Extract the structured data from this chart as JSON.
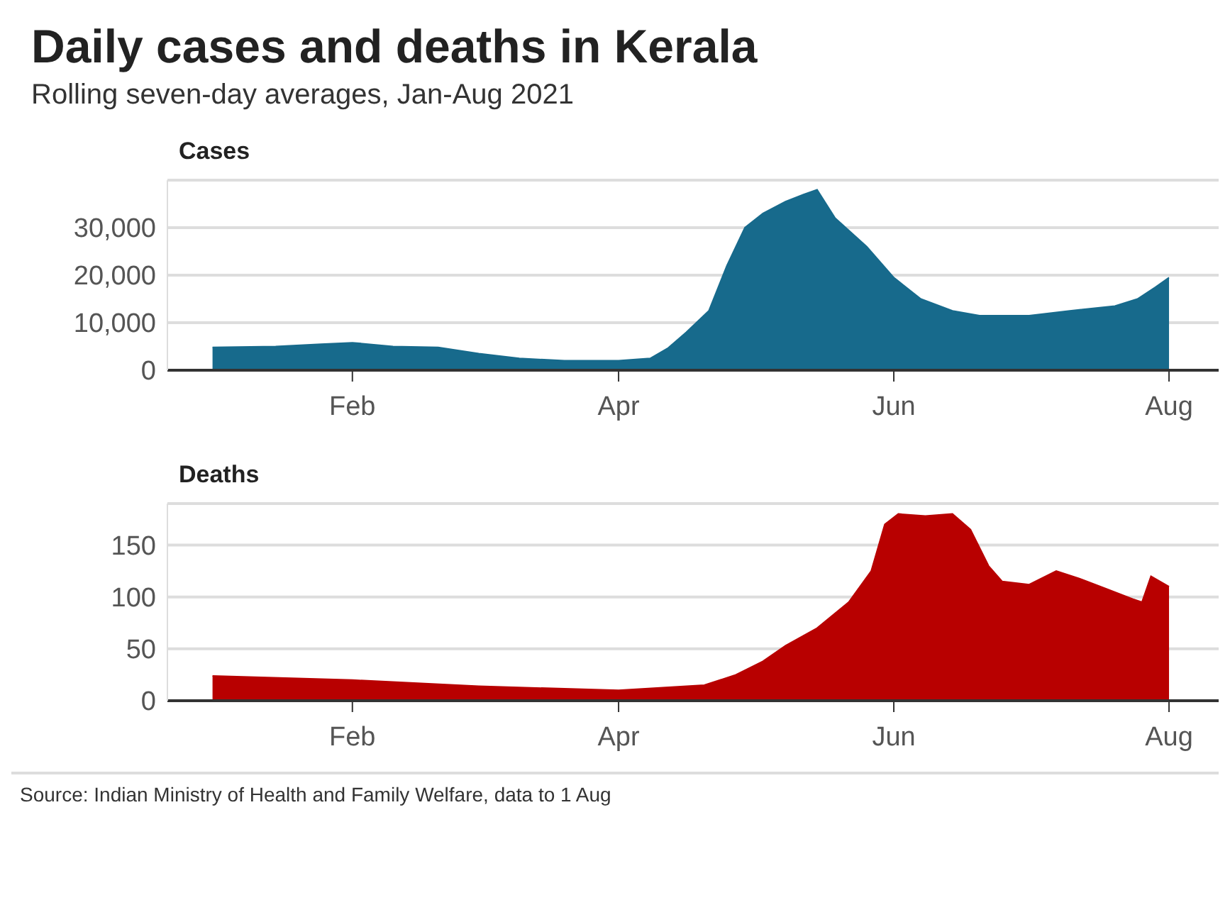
{
  "chart_data": [
    {
      "type": "area",
      "title": "Daily cases and deaths in Kerala",
      "subtitle": "Rolling seven-day averages, Jan-Aug 2021",
      "ylabel": "Cases",
      "grid": "y",
      "legend": false,
      "x": [
        "2021-01-01",
        "2021-01-15",
        "2021-01-25",
        "2021-02-01",
        "2021-02-10",
        "2021-02-20",
        "2021-03-01",
        "2021-03-10",
        "2021-03-20",
        "2021-04-01",
        "2021-04-08",
        "2021-04-12",
        "2021-04-16",
        "2021-04-21",
        "2021-04-25",
        "2021-04-29",
        "2021-05-03",
        "2021-05-08",
        "2021-05-12",
        "2021-05-15",
        "2021-05-19",
        "2021-05-26",
        "2021-06-01",
        "2021-06-07",
        "2021-06-14",
        "2021-06-20",
        "2021-07-01",
        "2021-07-10",
        "2021-07-20",
        "2021-07-25",
        "2021-07-29",
        "2021-08-01"
      ],
      "series": [
        {
          "color": "#176a8c",
          "values": [
            4800,
            5000,
            5500,
            5800,
            5000,
            4800,
            3500,
            2500,
            2000,
            2000,
            2500,
            4700,
            8000,
            12500,
            22000,
            30000,
            33000,
            35500,
            37000,
            38000,
            32000,
            26000,
            19500,
            15000,
            12500,
            11500,
            11500,
            12500,
            13500,
            15000,
            17500,
            19500
          ]
        }
      ],
      "xlim": [
        "2020-12-22",
        "2021-08-12"
      ],
      "xticks": [
        {
          "value": "2021-02-01",
          "label": "Feb"
        },
        {
          "value": "2021-04-01",
          "label": "Apr"
        },
        {
          "value": "2021-06-01",
          "label": "Jun"
        },
        {
          "value": "2021-08-01",
          "label": "Aug"
        }
      ],
      "ylim": [
        0,
        40000
      ],
      "yticks": [
        0,
        {
          "value": 10000,
          "label": "10,000"
        },
        {
          "value": 20000,
          "label": "20,000"
        },
        {
          "value": 30000,
          "label": "30,000"
        }
      ]
    },
    {
      "type": "area",
      "ylabel": "Deaths",
      "grid": "y",
      "legend": false,
      "annotations": [
        "Source: Indian Ministry of Health and Family Welfare, data to 1 Aug"
      ],
      "x": [
        "2021-01-01",
        "2021-02-01",
        "2021-03-01",
        "2021-04-01",
        "2021-04-20",
        "2021-04-27",
        "2021-05-03",
        "2021-05-08",
        "2021-05-15",
        "2021-05-22",
        "2021-05-27",
        "2021-05-30",
        "2021-06-02",
        "2021-06-08",
        "2021-06-14",
        "2021-06-18",
        "2021-06-22",
        "2021-06-25",
        "2021-07-01",
        "2021-07-07",
        "2021-07-12",
        "2021-07-18",
        "2021-07-24",
        "2021-07-26",
        "2021-07-28",
        "2021-08-01"
      ],
      "series": [
        {
          "color": "#b80000",
          "values": [
            24,
            20,
            14,
            10,
            15,
            25,
            38,
            53,
            70,
            95,
            125,
            170,
            180,
            178,
            180,
            165,
            130,
            115,
            112,
            125,
            118,
            108,
            98,
            95,
            120,
            110
          ]
        }
      ],
      "xlim": [
        "2020-12-22",
        "2021-08-12"
      ],
      "xticks": [
        {
          "value": "2021-02-01",
          "label": "Feb"
        },
        {
          "value": "2021-04-01",
          "label": "Apr"
        },
        {
          "value": "2021-06-01",
          "label": "Jun"
        },
        {
          "value": "2021-08-01",
          "label": "Aug"
        }
      ],
      "ylim": [
        0,
        190
      ],
      "yticks": [
        0,
        50,
        100,
        150
      ]
    }
  ]
}
